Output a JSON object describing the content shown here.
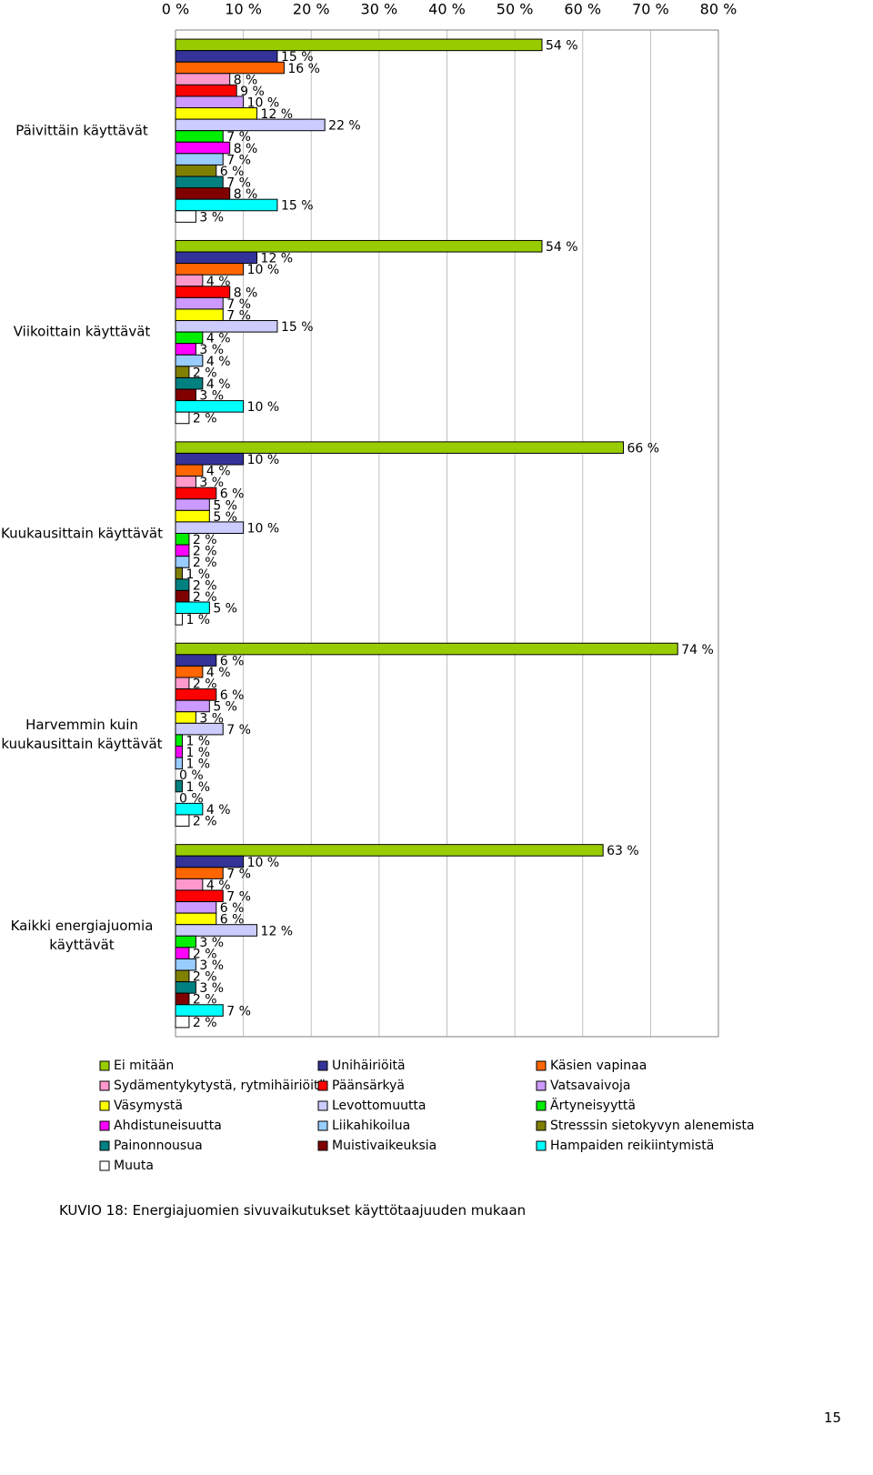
{
  "chart_data": {
    "type": "bar",
    "orientation": "horizontal",
    "categories": [
      "Päivittäin käyttävät",
      "Viikoittain käyttävät",
      "Kuukausittain käyttävät",
      "Harvemmin kuin kuukausittain käyttävät",
      "Kaikki energiajuomia käyttävät"
    ],
    "series": [
      {
        "name": "Ei mitään",
        "color": "#99cc00",
        "values": [
          54,
          54,
          66,
          74,
          63
        ],
        "value_labels": [
          "54 %",
          "54 %",
          "66 %",
          "74 %",
          "63 %"
        ]
      },
      {
        "name": "Unihäiriöitä",
        "color": "#333399",
        "values": [
          15,
          12,
          10,
          6,
          10
        ],
        "value_labels": [
          "15 %",
          "12 %",
          "10 %",
          "6 %",
          "10 %"
        ]
      },
      {
        "name": "Käsien vapinaa",
        "color": "#ff6600",
        "values": [
          16,
          10,
          4,
          4,
          7
        ],
        "value_labels": [
          "16 %",
          "10 %",
          "4 %",
          "4 %",
          "7 %"
        ]
      },
      {
        "name": "Sydämentykytystä, rytmihäiriöitä",
        "color": "#ff99cc",
        "values": [
          8,
          4,
          3,
          2,
          4
        ],
        "value_labels": [
          "8 %",
          "4 %",
          "3 %",
          "2 %",
          "4 %"
        ]
      },
      {
        "name": "Päänsärkyä",
        "color": "#ff0000",
        "values": [
          9,
          8,
          6,
          6,
          7
        ],
        "value_labels": [
          "9 %",
          "8 %",
          "6 %",
          "6 %",
          "7 %"
        ]
      },
      {
        "name": "Vatsavaivoja",
        "color": "#cc99ff",
        "values": [
          10,
          7,
          5,
          5,
          6
        ],
        "value_labels": [
          "10 %",
          "7 %",
          "5 %",
          "5 %",
          "6 %"
        ]
      },
      {
        "name": "Väsymystä",
        "color": "#ffff00",
        "values": [
          12,
          7,
          5,
          3,
          6
        ],
        "value_labels": [
          "12 %",
          "7 %",
          "5 %",
          "3 %",
          "6 %"
        ]
      },
      {
        "name": "Levottomuutta",
        "color": "#ccccff",
        "values": [
          22,
          15,
          10,
          7,
          12
        ],
        "value_labels": [
          "22 %",
          "15 %",
          "10 %",
          "7 %",
          "12 %"
        ]
      },
      {
        "name": "Ärtyneisyyttä",
        "color": "#00ee00",
        "values": [
          7,
          4,
          2,
          1,
          3
        ],
        "value_labels": [
          "7 %",
          "4 %",
          "2 %",
          "1 %",
          "3 %"
        ]
      },
      {
        "name": "Ahdistuneisuutta",
        "color": "#ff00ff",
        "values": [
          8,
          3,
          2,
          1,
          2
        ],
        "value_labels": [
          "8 %",
          "3 %",
          "2 %",
          "1 %",
          "2 %"
        ]
      },
      {
        "name": "Liikahikoilua",
        "color": "#99ccff",
        "values": [
          7,
          4,
          2,
          1,
          3
        ],
        "value_labels": [
          "7 %",
          "4 %",
          "2 %",
          "1 %",
          "3 %"
        ]
      },
      {
        "name": "Stresssin sietokyvyn alenemista",
        "color": "#808000",
        "values": [
          6,
          2,
          1,
          0,
          2
        ],
        "value_labels": [
          "6 %",
          "2 %",
          "1 %",
          "0 %",
          "2 %"
        ]
      },
      {
        "name": "Painonnousua",
        "color": "#008080",
        "values": [
          7,
          4,
          2,
          1,
          3
        ],
        "value_labels": [
          "7 %",
          "4 %",
          "2 %",
          "1 %",
          "3 %"
        ]
      },
      {
        "name": "Muistivaikeuksia",
        "color": "#800000",
        "values": [
          8,
          3,
          2,
          0,
          2
        ],
        "value_labels": [
          "8 %",
          "3 %",
          "2 %",
          "0 %",
          "2 %"
        ]
      },
      {
        "name": "Hampaiden reikiintymistä",
        "color": "#00ffff",
        "values": [
          15,
          10,
          5,
          4,
          7
        ],
        "value_labels": [
          "15 %",
          "10 %",
          "5 %",
          "4 %",
          "7 %"
        ]
      },
      {
        "name": "Muuta",
        "color": "#ffffff",
        "values": [
          3,
          2,
          1,
          2,
          2
        ],
        "value_labels": [
          "3 %",
          "2 %",
          "1 %",
          "2 %",
          "2 %"
        ]
      }
    ],
    "xlim": [
      0,
      80
    ],
    "xticks": [
      {
        "value": 0,
        "label": "0 %"
      },
      {
        "value": 10,
        "label": "10 %"
      },
      {
        "value": 20,
        "label": "20 %"
      },
      {
        "value": 30,
        "label": "30 %"
      },
      {
        "value": 40,
        "label": "40 %"
      },
      {
        "value": 50,
        "label": "50 %"
      },
      {
        "value": 60,
        "label": "60 %"
      },
      {
        "value": 70,
        "label": "70 %"
      },
      {
        "value": 80,
        "label": "80 %"
      }
    ],
    "grid": true,
    "legend": "bottom"
  },
  "caption": "KUVIO 18: Energiajuomien sivuvaikutukset käyttötaajuuden mukaan",
  "page_number": 15
}
